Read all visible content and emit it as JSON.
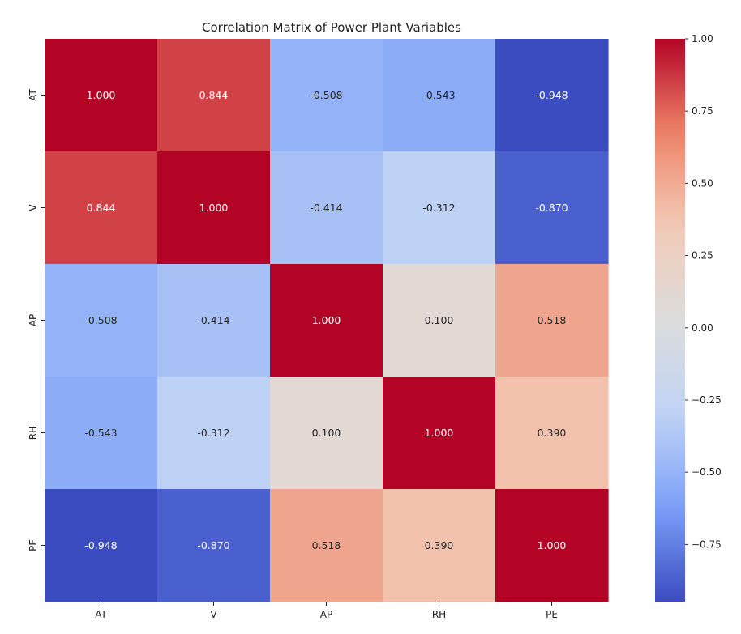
{
  "chart_data": {
    "type": "heatmap",
    "title": "Correlation Matrix of Power Plant Variables",
    "xlabel": "",
    "ylabel": "",
    "x_categories": [
      "AT",
      "V",
      "AP",
      "RH",
      "PE"
    ],
    "y_categories": [
      "AT",
      "V",
      "AP",
      "RH",
      "PE"
    ],
    "values": [
      [
        1.0,
        0.844,
        -0.508,
        -0.543,
        -0.948
      ],
      [
        0.844,
        1.0,
        -0.414,
        -0.312,
        -0.87
      ],
      [
        -0.508,
        -0.414,
        1.0,
        0.1,
        0.518
      ],
      [
        -0.543,
        -0.312,
        0.1,
        1.0,
        0.39
      ],
      [
        -0.948,
        -0.87,
        0.518,
        0.39,
        1.0
      ]
    ],
    "value_labels": [
      [
        "1.000",
        "0.844",
        "-0.508",
        "-0.543",
        "-0.948"
      ],
      [
        "0.844",
        "1.000",
        "-0.414",
        "-0.312",
        "-0.870"
      ],
      [
        "-0.508",
        "-0.414",
        "1.000",
        "0.100",
        "0.518"
      ],
      [
        "-0.543",
        "-0.312",
        "0.100",
        "1.000",
        "0.390"
      ],
      [
        "-0.948",
        "-0.870",
        "0.518",
        "0.390",
        "1.000"
      ]
    ],
    "colormap": "coolwarm",
    "colormap_stops": [
      "#3b4cc0",
      "#7b9ff9",
      "#c0d4f5",
      "#dddcdc",
      "#f2cbb7",
      "#ee8468",
      "#b40426"
    ],
    "vmin": -0.948,
    "vmax": 1.0,
    "colorbar": {
      "position": "right",
      "ticks": [
        1.0,
        0.75,
        0.5,
        0.25,
        0.0,
        -0.25,
        -0.5,
        -0.75
      ],
      "tick_labels": [
        "1.00",
        "0.75",
        "0.50",
        "0.25",
        "0.00",
        "−0.25",
        "−0.50",
        "−0.75"
      ]
    },
    "grid": false
  }
}
